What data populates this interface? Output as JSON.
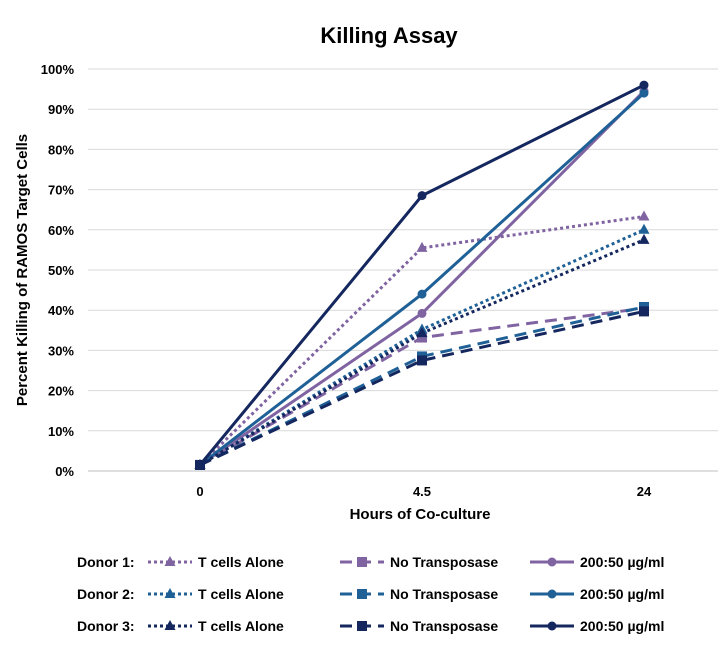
{
  "chart_data": {
    "type": "line",
    "title": "Killing Assay",
    "xlabel": "Hours of Co-culture",
    "ylabel": "Percent Killing of RAMOS Target Cells",
    "categories": [
      "0",
      "4.5",
      "24"
    ],
    "yticks": [
      "0%",
      "10%",
      "20%",
      "30%",
      "40%",
      "50%",
      "60%",
      "70%",
      "80%",
      "90%",
      "100%"
    ],
    "ylim": [
      0,
      1
    ],
    "grid": true,
    "legend_rows": [
      {
        "label": "Donor 1:",
        "series": [
          0,
          1,
          2
        ]
      },
      {
        "label": "Donor 2:",
        "series": [
          3,
          4,
          5
        ]
      },
      {
        "label": "Donor 3:",
        "series": [
          6,
          7,
          8
        ]
      }
    ],
    "series": [
      {
        "name": "T cells Alone",
        "donor": "Donor 1",
        "color": "#8064a2",
        "dash": "dotted",
        "marker": "triangle",
        "values": [
          0.015,
          0.555,
          0.633
        ]
      },
      {
        "name": "No Transposase",
        "donor": "Donor 1",
        "color": "#8064a2",
        "dash": "dashed",
        "marker": "square",
        "values": [
          0.015,
          0.332,
          0.405
        ]
      },
      {
        "name": "200:50 µg/ml",
        "donor": "Donor 1",
        "color": "#8064a2",
        "dash": "solid",
        "marker": "circle",
        "values": [
          0.015,
          0.392,
          0.945
        ]
      },
      {
        "name": "T cells Alone",
        "donor": "Donor 2",
        "color": "#1f6096",
        "dash": "dotted",
        "marker": "triangle",
        "values": [
          0.015,
          0.352,
          0.6
        ]
      },
      {
        "name": "No Transposase",
        "donor": "Donor 2",
        "color": "#1f6096",
        "dash": "dashed",
        "marker": "square",
        "values": [
          0.015,
          0.285,
          0.408
        ]
      },
      {
        "name": "200:50 µg/ml",
        "donor": "Donor 2",
        "color": "#1f6096",
        "dash": "solid",
        "marker": "circle",
        "values": [
          0.015,
          0.44,
          0.94
        ]
      },
      {
        "name": "T cells Alone",
        "donor": "Donor 3",
        "color": "#14275e",
        "dash": "dotted",
        "marker": "triangle",
        "values": [
          0.015,
          0.343,
          0.575
        ]
      },
      {
        "name": "No Transposase",
        "donor": "Donor 3",
        "color": "#14275e",
        "dash": "dashed",
        "marker": "square",
        "values": [
          0.015,
          0.275,
          0.397
        ]
      },
      {
        "name": "200:50 µg/ml",
        "donor": "Donor 3",
        "color": "#14275e",
        "dash": "solid",
        "marker": "circle",
        "values": [
          0.015,
          0.685,
          0.96
        ]
      }
    ]
  }
}
